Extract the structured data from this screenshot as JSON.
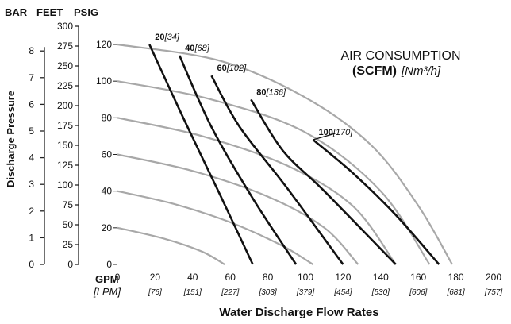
{
  "chart_data": {
    "type": "line",
    "title": "AIR CONSUMPTION",
    "subtitle_unit": "(SCFM)",
    "subtitle_unit_alt": "[Nm³/h]",
    "xlabel": "Water Discharge Flow Rates",
    "ylabel": "Discharge Pressure",
    "x_unit_primary": "GPM",
    "x_unit_secondary": "[LPM]",
    "xlim": [
      0,
      200
    ],
    "ylim": [
      0,
      120
    ],
    "x_ticks": [
      {
        "gpm": "0",
        "lpm": ""
      },
      {
        "gpm": "20",
        "lpm": "[76]"
      },
      {
        "gpm": "40",
        "lpm": "[151]"
      },
      {
        "gpm": "60",
        "lpm": "[227]"
      },
      {
        "gpm": "80",
        "lpm": "[303]"
      },
      {
        "gpm": "100",
        "lpm": "[379]"
      },
      {
        "gpm": "120",
        "lpm": "[454]"
      },
      {
        "gpm": "140",
        "lpm": "[530]"
      },
      {
        "gpm": "160",
        "lpm": "[606]"
      },
      {
        "gpm": "180",
        "lpm": "[681]"
      },
      {
        "gpm": "200",
        "lpm": "[757]"
      }
    ],
    "psig_ticks": [
      "0",
      "20",
      "40",
      "60",
      "80",
      "100",
      "120"
    ],
    "axis_headers": {
      "bar": "BAR",
      "feet": "FEET",
      "psig": "PSIG"
    },
    "bar_ticks": [
      "0",
      "1",
      "2",
      "3",
      "4",
      "5",
      "6",
      "7",
      "8"
    ],
    "feet_ticks": [
      "0",
      "25",
      "50",
      "75",
      "100",
      "125",
      "150",
      "175",
      "200",
      "225",
      "250",
      "275",
      "300"
    ],
    "pressure_curves": [
      {
        "name": "p20",
        "points": [
          [
            0,
            20
          ],
          [
            25,
            14
          ],
          [
            45,
            7
          ],
          [
            57,
            0
          ]
        ]
      },
      {
        "name": "p40",
        "points": [
          [
            0,
            40
          ],
          [
            30,
            33
          ],
          [
            60,
            23
          ],
          [
            88,
            10
          ],
          [
            104,
            0
          ]
        ]
      },
      {
        "name": "p60",
        "points": [
          [
            0,
            60
          ],
          [
            40,
            51
          ],
          [
            80,
            37
          ],
          [
            110,
            20
          ],
          [
            128,
            0
          ]
        ]
      },
      {
        "name": "p80",
        "points": [
          [
            0,
            80
          ],
          [
            45,
            70
          ],
          [
            90,
            54
          ],
          [
            125,
            32
          ],
          [
            148,
            0
          ]
        ]
      },
      {
        "name": "p100",
        "points": [
          [
            0,
            100
          ],
          [
            50,
            90
          ],
          [
            100,
            72
          ],
          [
            140,
            40
          ],
          [
            166,
            0
          ]
        ]
      },
      {
        "name": "p120",
        "points": [
          [
            0,
            120
          ],
          [
            55,
            111
          ],
          [
            100,
            91
          ],
          [
            135,
            65
          ],
          [
            160,
            32
          ],
          [
            178,
            0
          ]
        ]
      }
    ],
    "air_curves": [
      {
        "scfm": "20",
        "nm3h": "[34]",
        "points": [
          [
            17,
            120
          ],
          [
            35,
            80
          ],
          [
            55,
            37
          ],
          [
            72,
            0
          ]
        ]
      },
      {
        "scfm": "40",
        "nm3h": "[68]",
        "points": [
          [
            33,
            114
          ],
          [
            50,
            75
          ],
          [
            72,
            36
          ],
          [
            95,
            0
          ]
        ]
      },
      {
        "scfm": "60",
        "nm3h": "[102]",
        "points": [
          [
            50,
            103
          ],
          [
            65,
            75
          ],
          [
            90,
            42
          ],
          [
            120,
            0
          ]
        ]
      },
      {
        "scfm": "80",
        "nm3h": "[136]",
        "points": [
          [
            71,
            90
          ],
          [
            88,
            62
          ],
          [
            110,
            40
          ],
          [
            148,
            0
          ]
        ]
      },
      {
        "scfm": "100",
        "nm3h": "[170]",
        "points": [
          [
            104,
            68
          ],
          [
            125,
            50
          ],
          [
            148,
            27
          ],
          [
            171,
            0
          ]
        ]
      }
    ]
  }
}
